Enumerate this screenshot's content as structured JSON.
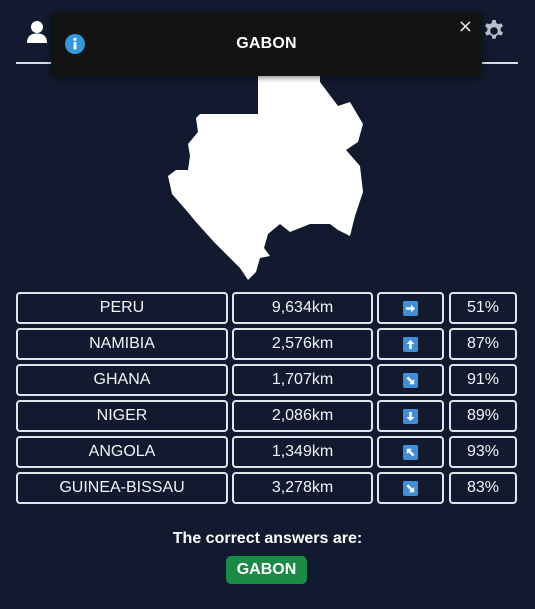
{
  "toast": {
    "title": "GABON",
    "close_label": "×"
  },
  "header": {
    "user_icon": "user-icon",
    "settings_icon": "gear-icon"
  },
  "map": {
    "country": "GABON"
  },
  "guesses": [
    {
      "country": "PERU",
      "distance": "9,634km",
      "direction": "east",
      "percent": "51%"
    },
    {
      "country": "NAMIBIA",
      "distance": "2,576km",
      "direction": "north",
      "percent": "87%"
    },
    {
      "country": "GHANA",
      "distance": "1,707km",
      "direction": "southeast",
      "percent": "91%"
    },
    {
      "country": "NIGER",
      "distance": "2,086km",
      "direction": "south",
      "percent": "89%"
    },
    {
      "country": "ANGOLA",
      "distance": "1,349km",
      "direction": "northwest",
      "percent": "93%"
    },
    {
      "country": "GUINEA-BISSAU",
      "distance": "3,278km",
      "direction": "southeast",
      "percent": "83%"
    }
  ],
  "result": {
    "label": "The correct answers are:",
    "answer": "GABON"
  },
  "colors": {
    "background": "#111a2e",
    "arrow": "#3f8ed8",
    "answer": "#1a8a47",
    "info": "#3498db"
  }
}
